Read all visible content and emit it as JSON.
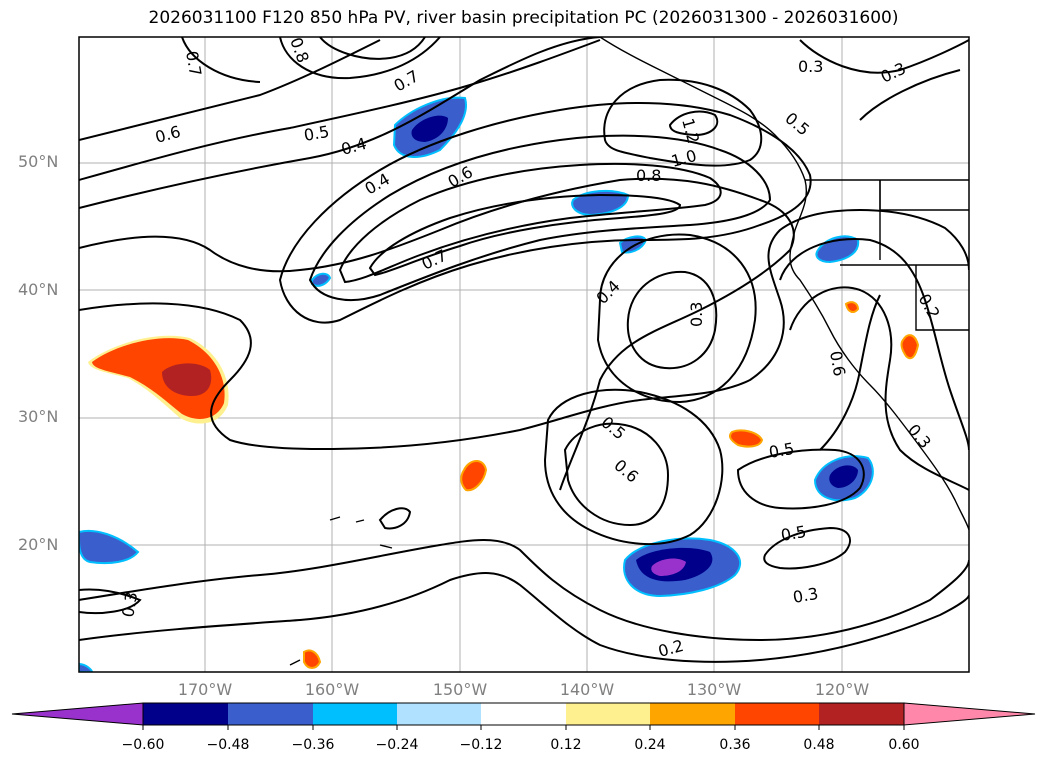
{
  "title": "2026031100 F120 850 hPa PV, river basin precipitation PC (2026031300 - 2026031600)",
  "latitude_labels": [
    "50°N",
    "40°N",
    "30°N",
    "20°N"
  ],
  "longitude_labels": [
    "170°W",
    "160°W",
    "150°W",
    "140°W",
    "130°W",
    "120°W"
  ],
  "contour_labels": [
    "0.7",
    "0.8",
    "0.7",
    "0.6",
    "0.5",
    "0.4",
    "0.4",
    "0.6",
    "0.7",
    "0.8",
    "1.0",
    "1.2",
    "0.5",
    "0.3",
    "0.4",
    "0.3",
    "0.2",
    "0.3",
    "0.3",
    "0.6",
    "0.5",
    "0.6",
    "0.5",
    "0.5",
    "0.3",
    "0.2",
    "0.3"
  ],
  "colorbar": {
    "tick_labels": [
      "−0.60",
      "−0.48",
      "−0.36",
      "−0.24",
      "−0.12",
      "0.12",
      "0.24",
      "0.36",
      "0.48",
      "0.60"
    ],
    "colors": [
      "#9932cc",
      "#00008b",
      "#3a5fcd",
      "#00bfff",
      "#b0e2ff",
      "#ffffff",
      "#fff08f",
      "#ffa500",
      "#ff4500",
      "#b22222",
      "#ff88aa"
    ]
  }
}
